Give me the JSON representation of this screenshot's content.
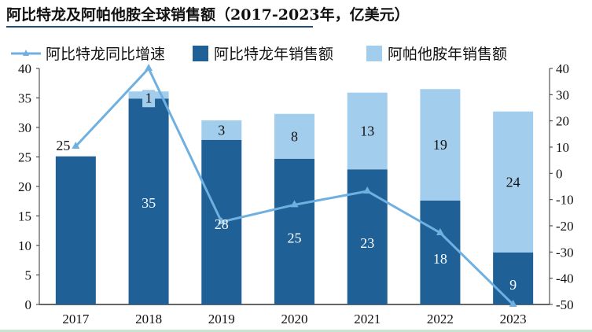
{
  "title": "阿比特龙及阿帕他胺全球销售额（2017-2023年，亿美元）",
  "chart_data": {
    "type": "bar",
    "stacked": true,
    "title": "阿比特龙及阿帕他胺全球销售额（2017-2023年，亿美元）",
    "categories": [
      "2017",
      "2018",
      "2019",
      "2020",
      "2021",
      "2022",
      "2023"
    ],
    "series": [
      {
        "name": "阿比特龙年销售额",
        "type": "bar",
        "axis": "left",
        "color": "#1f6096",
        "values": [
          25.1,
          34.9,
          27.9,
          24.7,
          22.9,
          17.6,
          8.8
        ],
        "labels": [
          "25",
          "35",
          "28",
          "25",
          "23",
          "18",
          "9"
        ]
      },
      {
        "name": "阿帕他胺年销售额",
        "type": "bar",
        "axis": "left",
        "color": "#a3cdec",
        "values": [
          0,
          1.2,
          3.3,
          7.6,
          13.0,
          18.9,
          23.9
        ],
        "labels": [
          "",
          "1",
          "3",
          "8",
          "13",
          "19",
          "24"
        ]
      },
      {
        "name": "阿比特龙同比增速",
        "type": "line",
        "axis": "right",
        "color": "#6fb0e0",
        "values": [
          10.3,
          40,
          -18.5,
          -12,
          -6.8,
          -22.7,
          -50
        ]
      }
    ],
    "ylim_left": [
      0,
      40
    ],
    "yticks_left": [
      "0",
      "5",
      "10",
      "15",
      "20",
      "25",
      "30",
      "35",
      "40"
    ],
    "ylim_right": [
      -50,
      40
    ],
    "yticks_right": [
      "-50",
      "-40",
      "-30",
      "-20",
      "-10",
      "0",
      "10",
      "20",
      "30",
      "40"
    ],
    "legend_position": "top",
    "grid": false
  }
}
